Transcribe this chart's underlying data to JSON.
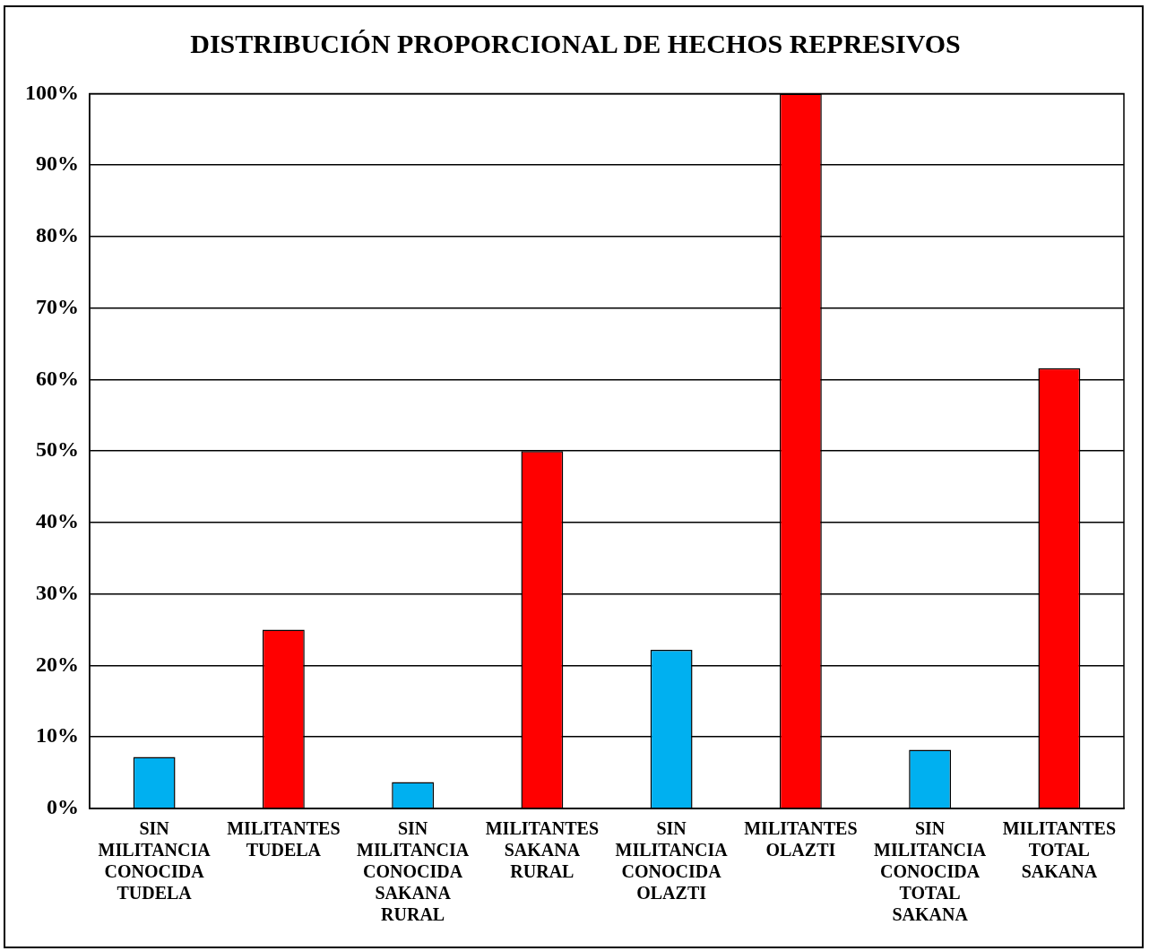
{
  "chart_data": {
    "type": "bar",
    "title": "DISTRIBUCIÓN PROPORCIONAL DE HECHOS REPRESIVOS",
    "categories": [
      "SIN MILITANCIA CONOCIDA TUDELA",
      "MILITANTES TUDELA",
      "SIN MILITANCIA CONOCIDA SAKANA RURAL",
      "MILITANTES SAKANA RURAL",
      "SIN MILITANCIA CONOCIDA OLAZTI",
      "MILITANTES OLAZTI",
      "SIN MILITANCIA CONOCIDA TOTAL SAKANA",
      "MILITANTES TOTAL SAKANA"
    ],
    "values": [
      7.2,
      25,
      3.7,
      50,
      22.2,
      100,
      8.2,
      61.6
    ],
    "colors": [
      "#00b0f0",
      "#ff0000",
      "#00b0f0",
      "#ff0000",
      "#00b0f0",
      "#ff0000",
      "#00b0f0",
      "#ff0000"
    ],
    "ylim": [
      0,
      100
    ],
    "yticks": [
      {
        "value": 0,
        "label": "0%"
      },
      {
        "value": 10,
        "label": "10%"
      },
      {
        "value": 20,
        "label": "20%"
      },
      {
        "value": 30,
        "label": "30%"
      },
      {
        "value": 40,
        "label": "40%"
      },
      {
        "value": 50,
        "label": "50%"
      },
      {
        "value": 60,
        "label": "60%"
      },
      {
        "value": 70,
        "label": "70%"
      },
      {
        "value": 80,
        "label": "80%"
      },
      {
        "value": 90,
        "label": "90%"
      },
      {
        "value": 100,
        "label": "100%"
      }
    ],
    "grid": "y",
    "legend": false
  }
}
